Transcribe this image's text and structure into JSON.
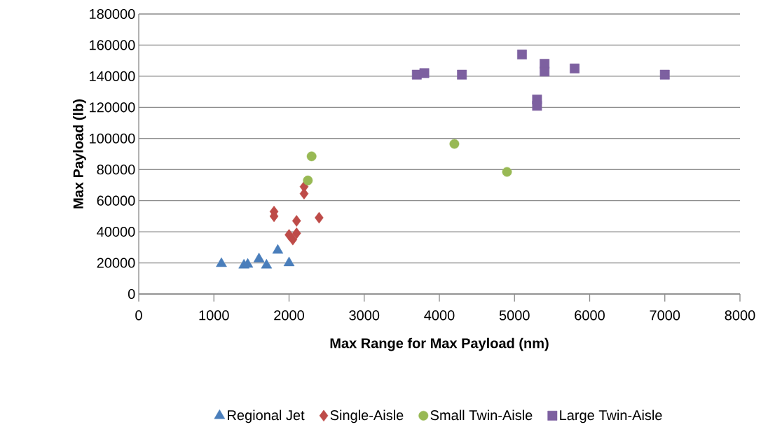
{
  "chart_data": {
    "type": "scatter",
    "xlabel": "Max Range for Max Payload (nm)",
    "ylabel": "Max Payload (lb)",
    "xlim": [
      0,
      8000
    ],
    "xticks": [
      0,
      1000,
      2000,
      3000,
      4000,
      5000,
      6000,
      7000,
      8000
    ],
    "ylim": [
      0,
      180000
    ],
    "yticks": [
      0,
      20000,
      40000,
      60000,
      80000,
      100000,
      120000,
      140000,
      160000,
      180000
    ],
    "grid": "y",
    "legend": "bottom",
    "series": [
      {
        "name": "Regional Jet",
        "color": "#4a7ebb",
        "marker": "triangle",
        "x": [
          1100,
          1400,
          1450,
          1600,
          1700,
          1850,
          2000
        ],
        "values": [
          19500,
          18500,
          19000,
          22500,
          18500,
          28000,
          20000
        ]
      },
      {
        "name": "Single-Aisle",
        "color": "#be4b48",
        "marker": "diamond",
        "x": [
          1800,
          1800,
          2000,
          2100,
          2050,
          2100,
          2400,
          2200,
          2200
        ],
        "values": [
          53000,
          50000,
          38000,
          39000,
          35000,
          47000,
          49000,
          69000,
          64500
        ]
      },
      {
        "name": "Small Twin-Aisle",
        "color": "#98b954",
        "marker": "circle",
        "x": [
          2300,
          2250,
          4200,
          4900
        ],
        "values": [
          88500,
          73000,
          96500,
          78500
        ]
      },
      {
        "name": "Large Twin-Aisle",
        "color": "#7d60a0",
        "marker": "square",
        "x": [
          3700,
          3800,
          4300,
          5100,
          5300,
          5300,
          5400,
          5400,
          5800,
          7000
        ],
        "values": [
          141000,
          142000,
          141000,
          154000,
          125000,
          121000,
          148000,
          143000,
          145000,
          141000
        ]
      }
    ]
  }
}
